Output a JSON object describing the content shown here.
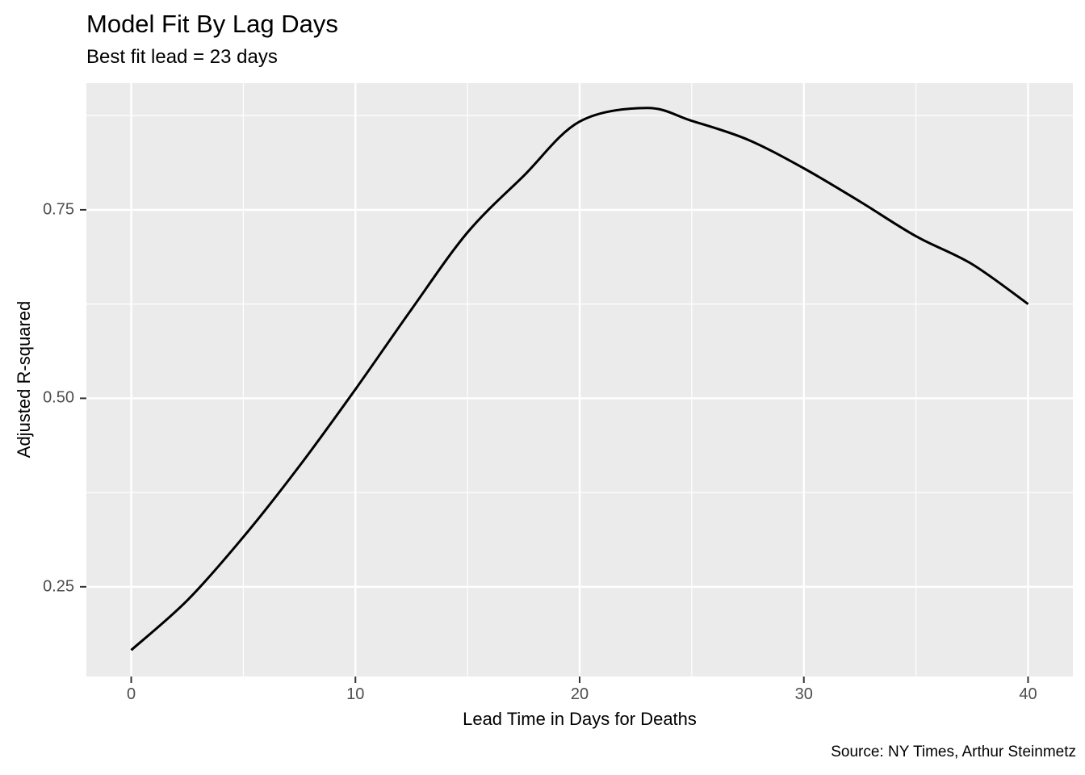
{
  "chart_data": {
    "type": "line",
    "title": "Model Fit By Lag Days",
    "subtitle": "Best fit lead = 23 days",
    "xlabel": "Lead Time in Days for Deaths",
    "ylabel": "Adjusted R-squared",
    "caption": "Source: NY Times, Arthur Steinmetz",
    "best_fit_lead_days": 23,
    "x_ticks": [
      0,
      10,
      20,
      30,
      40
    ],
    "x_minor_ticks": [
      5,
      15,
      25,
      35
    ],
    "y_ticks": [
      0.25,
      0.5,
      0.75
    ],
    "y_tick_labels": [
      "0.25",
      "0.50",
      "0.75"
    ],
    "y_minor_ticks": [
      0.375,
      0.625,
      0.875
    ],
    "xlim": [
      -2,
      42
    ],
    "ylim": [
      0.131,
      0.918
    ],
    "grid": true,
    "legend": "none",
    "series": [
      {
        "name": "Adjusted R-squared by lead days",
        "color": "#000000",
        "points": [
          [
            0,
            0.166
          ],
          [
            2.5,
            0.232
          ],
          [
            5,
            0.316
          ],
          [
            7.5,
            0.41
          ],
          [
            10,
            0.512
          ],
          [
            12.5,
            0.618
          ],
          [
            15,
            0.72
          ],
          [
            17.5,
            0.795
          ],
          [
            20,
            0.867
          ],
          [
            23,
            0.885
          ],
          [
            25,
            0.868
          ],
          [
            27.5,
            0.843
          ],
          [
            30,
            0.805
          ],
          [
            32.5,
            0.761
          ],
          [
            35,
            0.715
          ],
          [
            37.5,
            0.678
          ],
          [
            40,
            0.625
          ]
        ]
      }
    ],
    "colors": {
      "panel_background": "#EBEBEB",
      "gridline": "#FFFFFF",
      "line": "#000000",
      "tick_label": "#4D4D4D",
      "tick_mark": "#333333",
      "text": "#000000"
    }
  }
}
